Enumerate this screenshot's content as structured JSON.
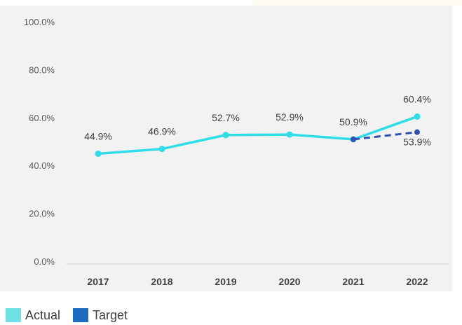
{
  "chart_data": {
    "type": "line",
    "categories": [
      "2017",
      "2018",
      "2019",
      "2020",
      "2021",
      "2022"
    ],
    "series": [
      {
        "name": "Actual",
        "color": "#2fdde6",
        "values": [
          44.9,
          46.9,
          52.7,
          52.9,
          50.9,
          60.4
        ],
        "labels": [
          "44.9%",
          "46.9%",
          "52.7%",
          "52.9%",
          "50.9%",
          "60.4%"
        ]
      },
      {
        "name": "Target",
        "color": "#3350b0",
        "style": "dashed",
        "x": [
          "2021",
          "2022"
        ],
        "values": [
          50.9,
          53.9
        ],
        "labels": [
          "",
          "53.9%"
        ]
      }
    ],
    "yticks": [
      "0.0%",
      "20.0%",
      "40.0%",
      "60.0%",
      "80.0%",
      "100.0%"
    ],
    "ylim": [
      0,
      100
    ],
    "legend_position": "bottom-left",
    "grid": false
  },
  "legend": {
    "actual_label": "Actual",
    "actual_color": "#6ee0e6",
    "target_label": "Target",
    "target_color": "#1f6bbf"
  }
}
